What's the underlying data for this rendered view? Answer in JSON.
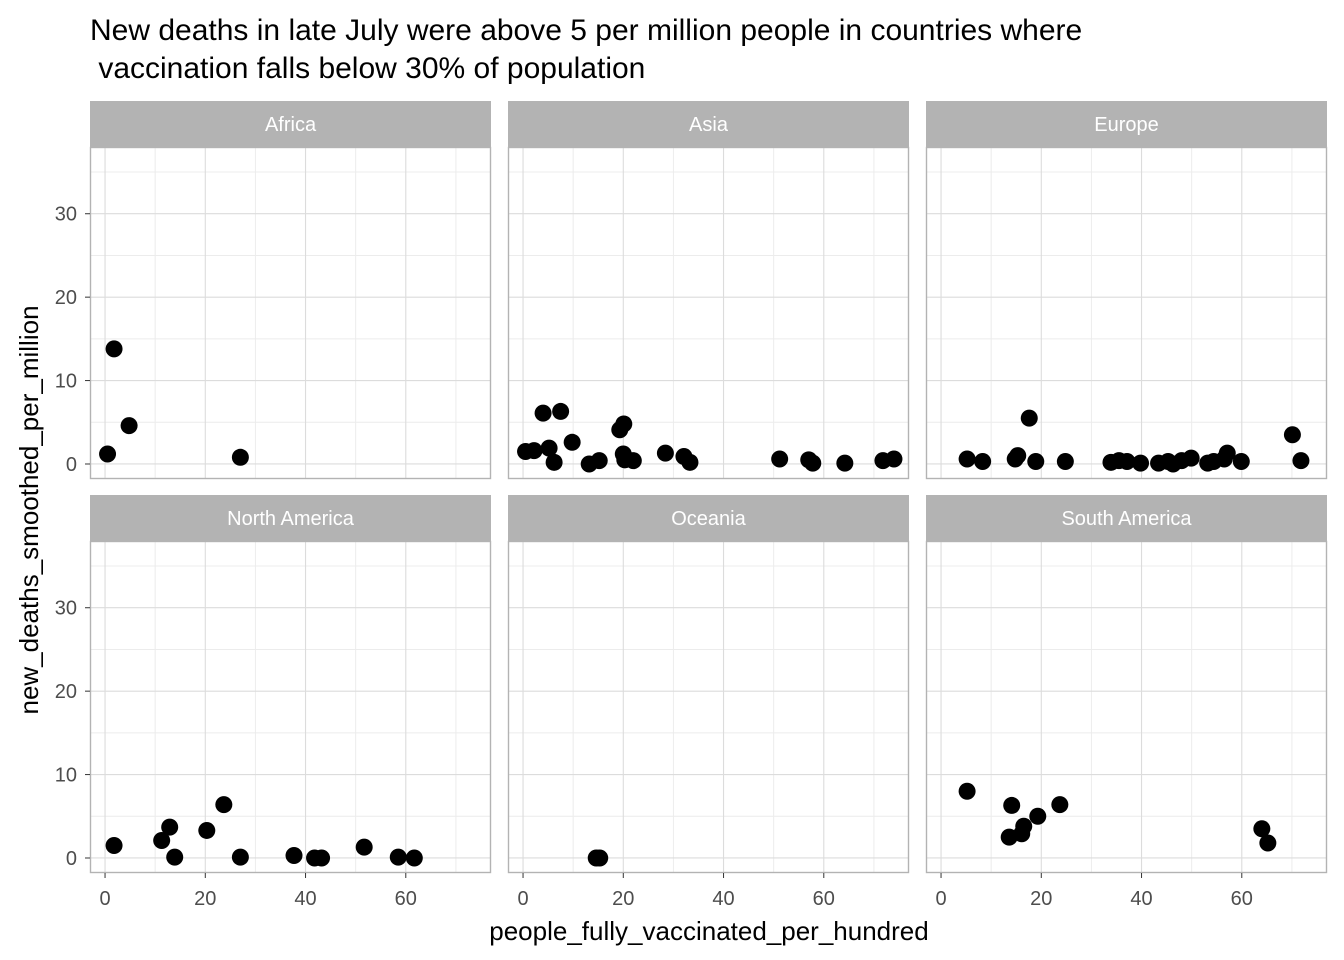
{
  "chart_data": {
    "type": "scatter",
    "title": "New deaths in late July were above 5 per million people in countries where\n vaccination falls below 30% of population",
    "xlabel": "people_fully_vaccinated_per_hundred",
    "ylabel": "new_deaths_smoothed_per_million",
    "xlim": [
      -3,
      77
    ],
    "ylim": [
      -1.8,
      38
    ],
    "x_ticks": [
      0,
      20,
      40,
      60
    ],
    "y_ticks": [
      0,
      10,
      20,
      30
    ],
    "grid": true,
    "facets": [
      {
        "name": "Africa",
        "points": [
          {
            "x": 0.5,
            "y": 1.2
          },
          {
            "x": 1.8,
            "y": 13.8
          },
          {
            "x": 4.8,
            "y": 4.6
          },
          {
            "x": 27.0,
            "y": 0.8
          }
        ]
      },
      {
        "name": "Asia",
        "points": [
          {
            "x": 0.5,
            "y": 1.5
          },
          {
            "x": 2.2,
            "y": 1.6
          },
          {
            "x": 4.0,
            "y": 6.1
          },
          {
            "x": 5.2,
            "y": 1.9
          },
          {
            "x": 6.2,
            "y": 0.2
          },
          {
            "x": 7.5,
            "y": 6.3
          },
          {
            "x": 9.8,
            "y": 2.6
          },
          {
            "x": 13.2,
            "y": 0.0
          },
          {
            "x": 15.2,
            "y": 0.4
          },
          {
            "x": 19.3,
            "y": 4.1
          },
          {
            "x": 20.1,
            "y": 4.8
          },
          {
            "x": 20.0,
            "y": 1.2
          },
          {
            "x": 20.3,
            "y": 0.5
          },
          {
            "x": 22.0,
            "y": 0.4
          },
          {
            "x": 28.4,
            "y": 1.3
          },
          {
            "x": 32.1,
            "y": 0.9
          },
          {
            "x": 33.3,
            "y": 0.2
          },
          {
            "x": 51.2,
            "y": 0.6
          },
          {
            "x": 57.0,
            "y": 0.5
          },
          {
            "x": 57.8,
            "y": 0.1
          },
          {
            "x": 64.2,
            "y": 0.1
          },
          {
            "x": 71.8,
            "y": 0.4
          },
          {
            "x": 74.0,
            "y": 0.6
          }
        ]
      },
      {
        "name": "Europe",
        "points": [
          {
            "x": 5.2,
            "y": 0.6
          },
          {
            "x": 8.3,
            "y": 0.3
          },
          {
            "x": 14.8,
            "y": 0.6
          },
          {
            "x": 15.3,
            "y": 1.0
          },
          {
            "x": 17.6,
            "y": 5.5
          },
          {
            "x": 18.9,
            "y": 0.3
          },
          {
            "x": 24.8,
            "y": 0.3
          },
          {
            "x": 33.9,
            "y": 0.2
          },
          {
            "x": 35.5,
            "y": 0.4
          },
          {
            "x": 37.1,
            "y": 0.3
          },
          {
            "x": 39.8,
            "y": 0.1
          },
          {
            "x": 43.4,
            "y": 0.1
          },
          {
            "x": 45.3,
            "y": 0.3
          },
          {
            "x": 46.3,
            "y": 0.0
          },
          {
            "x": 48.0,
            "y": 0.4
          },
          {
            "x": 49.9,
            "y": 0.7
          },
          {
            "x": 53.2,
            "y": 0.1
          },
          {
            "x": 54.4,
            "y": 0.3
          },
          {
            "x": 56.5,
            "y": 0.6
          },
          {
            "x": 57.1,
            "y": 1.3
          },
          {
            "x": 59.9,
            "y": 0.3
          },
          {
            "x": 70.1,
            "y": 3.5
          },
          {
            "x": 71.8,
            "y": 0.4
          }
        ]
      },
      {
        "name": "North America",
        "points": [
          {
            "x": 1.8,
            "y": 1.5
          },
          {
            "x": 11.3,
            "y": 2.1
          },
          {
            "x": 12.9,
            "y": 3.7
          },
          {
            "x": 13.9,
            "y": 0.1
          },
          {
            "x": 20.3,
            "y": 3.3
          },
          {
            "x": 23.7,
            "y": 6.4
          },
          {
            "x": 27.0,
            "y": 0.1
          },
          {
            "x": 37.7,
            "y": 0.3
          },
          {
            "x": 41.8,
            "y": 0.0
          },
          {
            "x": 43.2,
            "y": 0.0
          },
          {
            "x": 51.7,
            "y": 1.3
          },
          {
            "x": 58.5,
            "y": 0.1
          },
          {
            "x": 61.7,
            "y": 0.0
          }
        ]
      },
      {
        "name": "Oceania",
        "points": [
          {
            "x": 14.6,
            "y": 0.0
          },
          {
            "x": 15.3,
            "y": 0.0
          }
        ]
      },
      {
        "name": "South America",
        "points": [
          {
            "x": 5.2,
            "y": 8.0
          },
          {
            "x": 13.6,
            "y": 2.5
          },
          {
            "x": 14.1,
            "y": 6.3
          },
          {
            "x": 16.1,
            "y": 2.9
          },
          {
            "x": 16.5,
            "y": 3.8
          },
          {
            "x": 19.3,
            "y": 5.0
          },
          {
            "x": 23.7,
            "y": 6.4
          },
          {
            "x": 64.0,
            "y": 3.5
          },
          {
            "x": 65.2,
            "y": 1.8
          }
        ]
      }
    ]
  }
}
